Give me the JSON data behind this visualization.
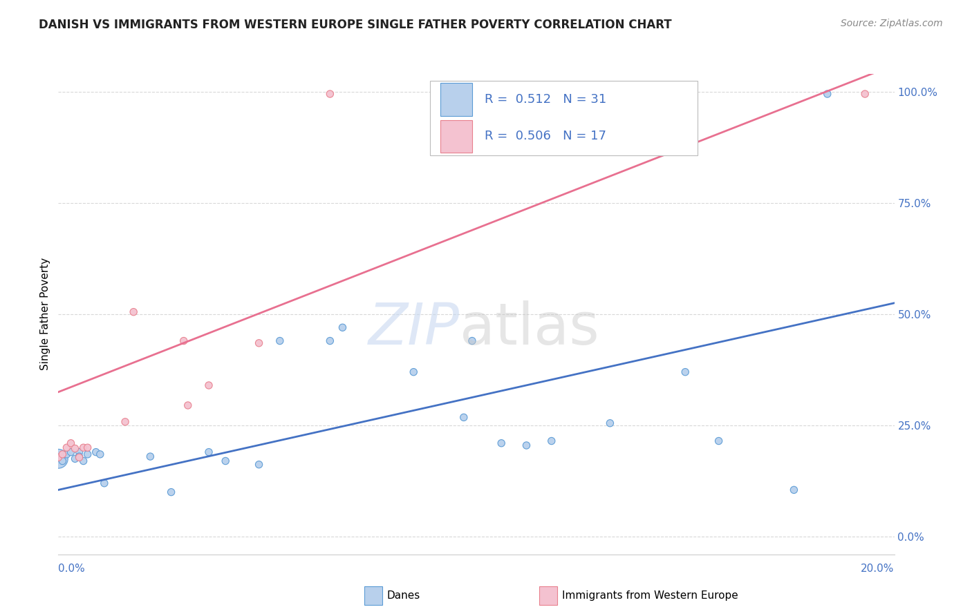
{
  "title": "DANISH VS IMMIGRANTS FROM WESTERN EUROPE SINGLE FATHER POVERTY CORRELATION CHART",
  "source": "Source: ZipAtlas.com",
  "ylabel": "Single Father Poverty",
  "ytick_labels": [
    "0.0%",
    "25.0%",
    "50.0%",
    "75.0%",
    "100.0%"
  ],
  "ytick_vals": [
    0.0,
    0.25,
    0.5,
    0.75,
    1.0
  ],
  "xlim": [
    0.0,
    0.2
  ],
  "ylim": [
    -0.04,
    1.04
  ],
  "danes_color": "#b8d0ec",
  "danes_edge_color": "#5b9bd5",
  "immigrants_color": "#f4c2d0",
  "immigrants_edge_color": "#e8808e",
  "danes_line_color": "#4472c4",
  "immigrants_line_color": "#e87090",
  "background_color": "#ffffff",
  "grid_color": "#d8d8d8",
  "danes_x": [
    0.0,
    0.001,
    0.002,
    0.003,
    0.004,
    0.005,
    0.005,
    0.006,
    0.007,
    0.009,
    0.01,
    0.011,
    0.022,
    0.027,
    0.036,
    0.04,
    0.048,
    0.053,
    0.065,
    0.068,
    0.085,
    0.097,
    0.099,
    0.106,
    0.112,
    0.118,
    0.132,
    0.15,
    0.158,
    0.176,
    0.184
  ],
  "danes_y": [
    0.175,
    0.17,
    0.185,
    0.19,
    0.175,
    0.19,
    0.18,
    0.17,
    0.185,
    0.19,
    0.185,
    0.12,
    0.18,
    0.1,
    0.19,
    0.17,
    0.162,
    0.44,
    0.44,
    0.47,
    0.37,
    0.268,
    0.44,
    0.21,
    0.205,
    0.215,
    0.255,
    0.37,
    0.215,
    0.105,
    0.995
  ],
  "danes_sizes": [
    400,
    55,
    55,
    55,
    55,
    55,
    55,
    55,
    55,
    55,
    55,
    55,
    55,
    55,
    55,
    55,
    55,
    55,
    55,
    55,
    55,
    55,
    55,
    55,
    55,
    55,
    55,
    55,
    55,
    55,
    55
  ],
  "imm_x": [
    0.0,
    0.001,
    0.002,
    0.003,
    0.004,
    0.005,
    0.006,
    0.007,
    0.016,
    0.018,
    0.03,
    0.031,
    0.036,
    0.048,
    0.065,
    0.15,
    0.193
  ],
  "imm_y": [
    0.178,
    0.185,
    0.2,
    0.21,
    0.198,
    0.178,
    0.2,
    0.2,
    0.258,
    0.505,
    0.44,
    0.295,
    0.34,
    0.435,
    0.995,
    0.995,
    0.995
  ],
  "imm_sizes": [
    55,
    55,
    55,
    55,
    55,
    55,
    55,
    55,
    55,
    55,
    55,
    55,
    55,
    55,
    55,
    55,
    55
  ],
  "danes_line_x0": 0.0,
  "danes_line_y0": 0.105,
  "danes_line_x1": 0.2,
  "danes_line_y1": 0.525,
  "imm_line_x0": 0.0,
  "imm_line_y0": 0.325,
  "imm_line_x1": 0.2,
  "imm_line_y1": 1.06
}
